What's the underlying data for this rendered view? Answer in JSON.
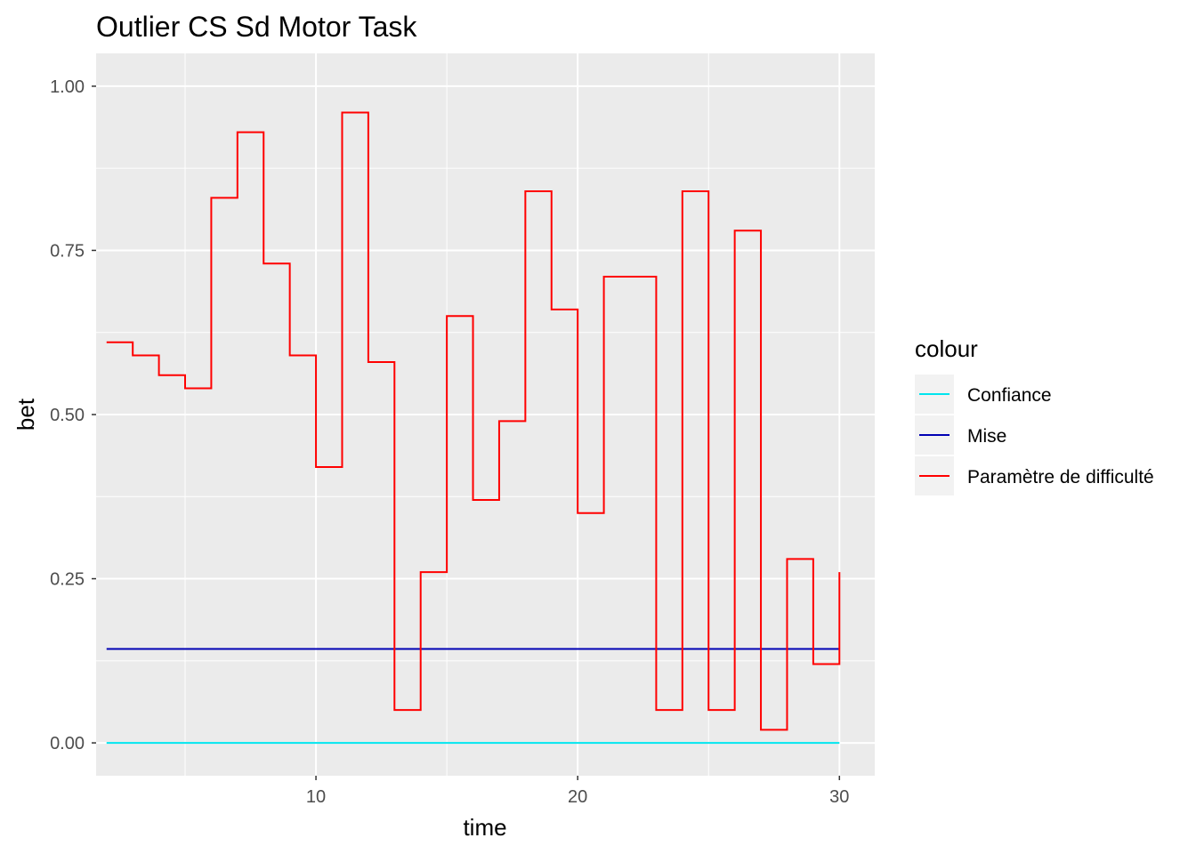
{
  "chart_data": {
    "type": "line",
    "title": "Outlier CS Sd Motor Task",
    "xlabel": "time",
    "ylabel": "bet",
    "xlim": [
      1.6,
      31.35
    ],
    "ylim": [
      -0.05,
      1.05
    ],
    "x_ticks": [
      10,
      20,
      30
    ],
    "x_tick_labels": [
      "10",
      "20",
      "30"
    ],
    "y_ticks": [
      0,
      0.25,
      0.5,
      0.75,
      1.0
    ],
    "y_tick_labels": [
      "0.00",
      "0.25",
      "0.50",
      "0.75",
      "1.00"
    ],
    "grid": true,
    "legend": {
      "title": "colour",
      "position": "right"
    },
    "series": [
      {
        "name": "Confiance",
        "color": "#00e5ee",
        "step": "hv",
        "x": [
          2,
          30
        ],
        "values": [
          0.0,
          0.0
        ]
      },
      {
        "name": "Mise",
        "color": "#0000b3",
        "step": "hv",
        "x": [
          2,
          30
        ],
        "values": [
          0.143,
          0.143
        ]
      },
      {
        "name": "Paramètre de difficulté",
        "color": "#ff0000",
        "step": "hv",
        "x": [
          2,
          3,
          4,
          5,
          6,
          7,
          8,
          9,
          10,
          11,
          12,
          13,
          14,
          15,
          16,
          17,
          18,
          19,
          20,
          21,
          22,
          23,
          24,
          25,
          26,
          27,
          28,
          29,
          30
        ],
        "values": [
          0.61,
          0.59,
          0.56,
          0.54,
          0.83,
          0.93,
          0.73,
          0.59,
          0.42,
          0.96,
          0.58,
          0.05,
          0.26,
          0.65,
          0.37,
          0.49,
          0.84,
          0.66,
          0.35,
          0.71,
          0.71,
          0.05,
          0.84,
          0.05,
          0.78,
          0.02,
          0.28,
          0.12,
          0.26
        ]
      }
    ]
  }
}
